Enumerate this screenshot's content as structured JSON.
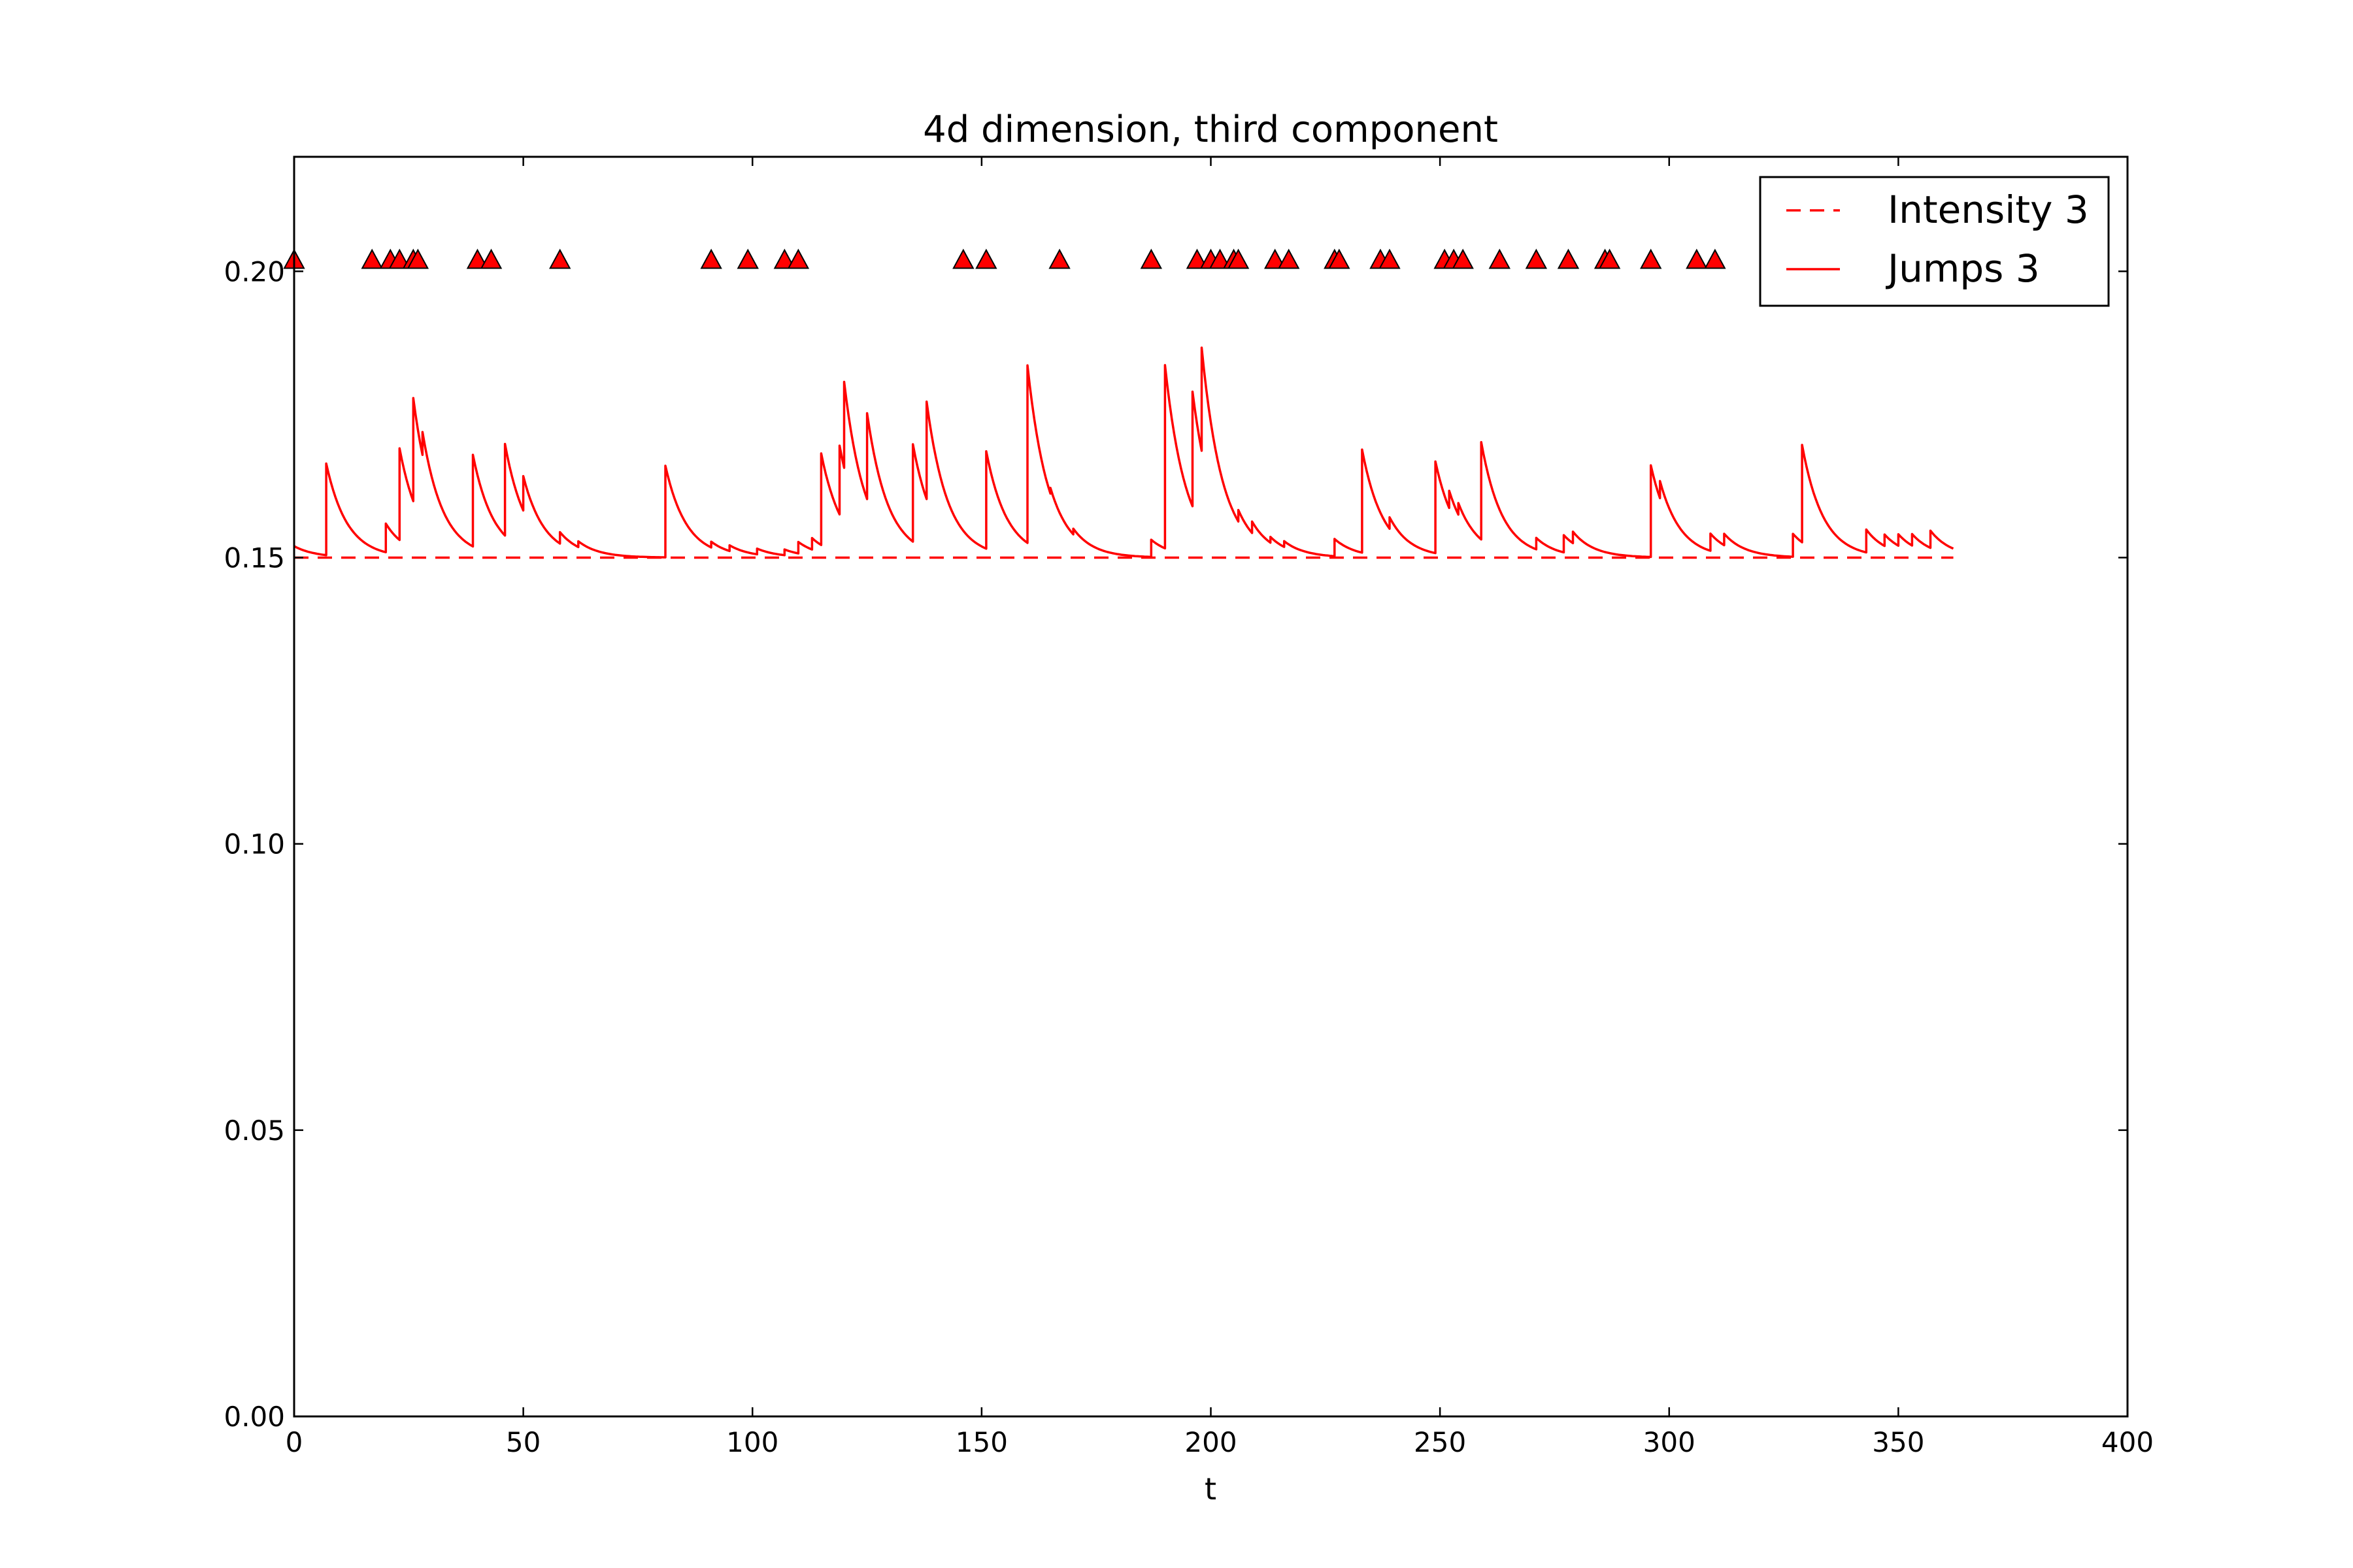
{
  "chart_data": {
    "type": "line",
    "title": "4d dimension, third component",
    "xlabel": "t",
    "ylabel": "",
    "xlim": [
      0,
      400
    ],
    "ylim": [
      0,
      0.22
    ],
    "xticks": [
      "0",
      "50",
      "100",
      "150",
      "200",
      "250",
      "300",
      "350",
      "400"
    ],
    "yticks": [
      "0.00",
      "0.05",
      "0.10",
      "0.15",
      "0.20"
    ],
    "grid": false,
    "legend_position": "top-right",
    "legend": [
      "Intensity 3",
      "Jumps 3"
    ],
    "colors": {
      "series": "#ff0000",
      "marker_fill": "#ff0000",
      "marker_edge": "#000000"
    },
    "series": [
      {
        "name": "Intensity 3",
        "style": "dashed",
        "x": [
          0,
          362
        ],
        "y": [
          0.15,
          0.15
        ]
      },
      {
        "name": "Jumps 3",
        "style": "solid",
        "baseline": 0.15,
        "x_end": 362,
        "y_start": 0.152,
        "decay_rate": 0.22,
        "jumps": [
          {
            "t": 7,
            "h": 0.016
          },
          {
            "t": 20,
            "h": 0.005
          },
          {
            "t": 23,
            "h": 0.016
          },
          {
            "t": 26,
            "h": 0.018
          },
          {
            "t": 28,
            "h": 0.004
          },
          {
            "t": 39,
            "h": 0.016
          },
          {
            "t": 46,
            "h": 0.016
          },
          {
            "t": 50,
            "h": 0.006
          },
          {
            "t": 58,
            "h": 0.002
          },
          {
            "t": 62,
            "h": 0.001
          },
          {
            "t": 81,
            "h": 0.016
          },
          {
            "t": 91,
            "h": 0.001
          },
          {
            "t": 95,
            "h": 0.001
          },
          {
            "t": 101,
            "h": 0.001
          },
          {
            "t": 107,
            "h": 0.001
          },
          {
            "t": 110,
            "h": 0.002
          },
          {
            "t": 113,
            "h": 0.002
          },
          {
            "t": 115,
            "h": 0.016
          },
          {
            "t": 119,
            "h": 0.012
          },
          {
            "t": 120,
            "h": 0.015
          },
          {
            "t": 125,
            "h": 0.015
          },
          {
            "t": 135,
            "h": 0.017
          },
          {
            "t": 138,
            "h": 0.017
          },
          {
            "t": 151,
            "h": 0.017
          },
          {
            "t": 160,
            "h": 0.031
          },
          {
            "t": 165,
            "h": 0.001
          },
          {
            "t": 170,
            "h": 0.001
          },
          {
            "t": 187,
            "h": 0.003
          },
          {
            "t": 190,
            "h": 0.032
          },
          {
            "t": 196,
            "h": 0.02
          },
          {
            "t": 198,
            "h": 0.018
          },
          {
            "t": 206,
            "h": 0.002
          },
          {
            "t": 209,
            "h": 0.002
          },
          {
            "t": 213,
            "h": 0.001
          },
          {
            "t": 216,
            "h": 0.001
          },
          {
            "t": 227,
            "h": 0.003
          },
          {
            "t": 233,
            "h": 0.018
          },
          {
            "t": 239,
            "h": 0.002
          },
          {
            "t": 249,
            "h": 0.016
          },
          {
            "t": 252,
            "h": 0.003
          },
          {
            "t": 254,
            "h": 0.002
          },
          {
            "t": 259,
            "h": 0.017
          },
          {
            "t": 271,
            "h": 0.002
          },
          {
            "t": 277,
            "h": 0.003
          },
          {
            "t": 279,
            "h": 0.002
          },
          {
            "t": 296,
            "h": 0.016
          },
          {
            "t": 298,
            "h": 0.003
          },
          {
            "t": 309,
            "h": 0.003
          },
          {
            "t": 312,
            "h": 0.002
          },
          {
            "t": 327,
            "h": 0.004
          },
          {
            "t": 329,
            "h": 0.017
          },
          {
            "t": 343,
            "h": 0.004
          },
          {
            "t": 347,
            "h": 0.002
          },
          {
            "t": 350,
            "h": 0.002
          },
          {
            "t": 353,
            "h": 0.002
          },
          {
            "t": 357,
            "h": 0.003
          }
        ]
      }
    ],
    "event_markers": {
      "y": 0.202,
      "shape": "triangle-up",
      "x": [
        0,
        17,
        21,
        23,
        26,
        27,
        40,
        43,
        58,
        91,
        99,
        107,
        110,
        146,
        151,
        167,
        187,
        197,
        200,
        202,
        205,
        206,
        214,
        217,
        227,
        228,
        237,
        239,
        251,
        253,
        255,
        263,
        271,
        278,
        286,
        287,
        296,
        306,
        310
      ]
    }
  }
}
